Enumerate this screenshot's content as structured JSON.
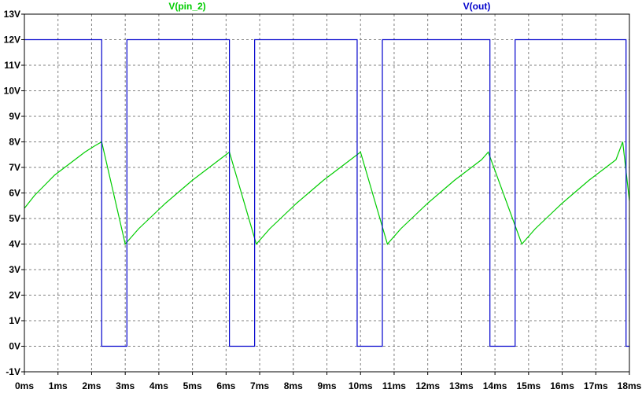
{
  "chart_data": {
    "type": "line",
    "title": "",
    "xlabel": "",
    "ylabel": "",
    "xlim": [
      0,
      18
    ],
    "ylim": [
      -1,
      13
    ],
    "grid": true,
    "legend_position": "top",
    "x_ticks": [
      0,
      1,
      2,
      3,
      4,
      5,
      6,
      7,
      8,
      9,
      10,
      11,
      12,
      13,
      14,
      15,
      16,
      17,
      18
    ],
    "x_tick_labels": [
      "0ms",
      "1ms",
      "2ms",
      "3ms",
      "4ms",
      "5ms",
      "6ms",
      "7ms",
      "8ms",
      "9ms",
      "10ms",
      "11ms",
      "12ms",
      "13ms",
      "14ms",
      "15ms",
      "16ms",
      "17ms",
      "18ms"
    ],
    "y_ticks": [
      -1,
      0,
      1,
      2,
      3,
      4,
      5,
      6,
      7,
      8,
      9,
      10,
      11,
      12,
      13
    ],
    "y_tick_labels": [
      "-1V",
      "0V",
      "1V",
      "2V",
      "3V",
      "4V",
      "5V",
      "6V",
      "7V",
      "8V",
      "9V",
      "10V",
      "11V",
      "12V",
      "13V"
    ],
    "series": [
      {
        "name": "V(pin_2)",
        "color": "#00cc00",
        "x": [
          0.0,
          0.3,
          0.6,
          0.9,
          1.2,
          1.5,
          1.8,
          2.1,
          2.3,
          3.0,
          3.4,
          3.8,
          4.2,
          4.6,
          5.0,
          5.4,
          5.8,
          6.1,
          6.9,
          7.3,
          7.7,
          8.1,
          8.5,
          8.9,
          9.3,
          9.7,
          10.0,
          10.8,
          11.2,
          11.6,
          12.0,
          12.4,
          12.8,
          13.2,
          13.6,
          13.8,
          14.8,
          15.2,
          15.6,
          16.0,
          16.4,
          16.8,
          17.2,
          17.6,
          17.8,
          18.0
        ],
        "y": [
          5.4,
          5.9,
          6.3,
          6.7,
          7.0,
          7.3,
          7.6,
          7.85,
          8.0,
          4.0,
          4.6,
          5.1,
          5.6,
          6.05,
          6.5,
          6.9,
          7.3,
          7.6,
          4.0,
          4.6,
          5.1,
          5.6,
          6.05,
          6.5,
          6.9,
          7.3,
          7.6,
          4.0,
          4.6,
          5.1,
          5.6,
          6.05,
          6.5,
          6.9,
          7.3,
          7.6,
          4.0,
          4.6,
          5.1,
          5.6,
          6.05,
          6.5,
          6.9,
          7.3,
          8.0,
          5.7
        ]
      },
      {
        "name": "V(out)",
        "color": "#0000cc",
        "x": [
          0.0,
          2.3,
          2.3,
          3.05,
          3.05,
          6.1,
          6.1,
          6.85,
          6.85,
          9.9,
          9.9,
          10.65,
          10.65,
          13.85,
          13.85,
          14.6,
          14.6,
          17.9,
          17.9,
          18.0
        ],
        "y": [
          12,
          12,
          0,
          0,
          12,
          12,
          0,
          0,
          12,
          12,
          0,
          0,
          12,
          12,
          0,
          0,
          12,
          12,
          0,
          0
        ]
      }
    ]
  }
}
